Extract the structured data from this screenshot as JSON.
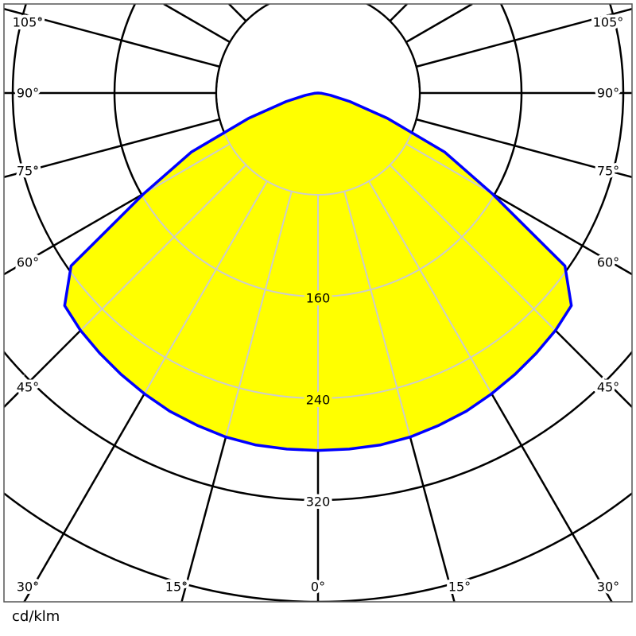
{
  "chart_data": {
    "type": "polar",
    "unit_label": "cd/klm",
    "radial_ticks": [
      80,
      160,
      240,
      320,
      400
    ],
    "radial_tick_labels": [
      "160",
      "240",
      "320"
    ],
    "angle_labels": [
      "0°",
      "15°",
      "30°",
      "45°",
      "60°",
      "75°",
      "90°",
      "105°"
    ],
    "angle_step_deg": 15,
    "symmetric": true,
    "series": [
      {
        "angles_deg": [
          0,
          5,
          10,
          15,
          20,
          25,
          30,
          35,
          40,
          45,
          50,
          55,
          60,
          65,
          70,
          75,
          80,
          85,
          90
        ],
        "values": [
          281,
          281,
          281,
          280,
          278,
          276,
          273,
          270,
          267,
          264,
          260,
          237,
          158,
          110,
          58,
          26,
          10,
          3,
          0
        ]
      }
    ],
    "colors": {
      "fill": "#ffff00",
      "outline": "#0000ff",
      "grid": "#000000",
      "grid_inside": "#cccccc"
    }
  }
}
